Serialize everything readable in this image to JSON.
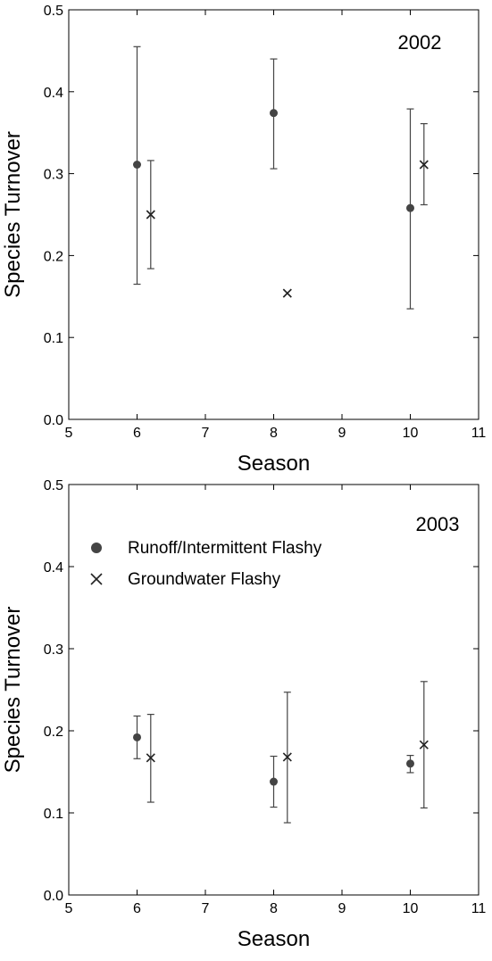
{
  "chart_data": [
    {
      "type": "scatter",
      "annotation": "2002",
      "xlabel": "Season",
      "ylabel": "Species Turnover",
      "xlim": [
        5,
        11
      ],
      "ylim": [
        0,
        0.5
      ],
      "xticks": [
        5,
        6,
        7,
        8,
        9,
        10,
        11
      ],
      "yticks": [
        0.0,
        0.1,
        0.2,
        0.3,
        0.4,
        0.5
      ],
      "ytick_labels": [
        "0.0",
        "0.1",
        "0.2",
        "0.3",
        "0.4",
        "0.5"
      ],
      "grid": false,
      "series": [
        {
          "marker": "circle",
          "points": [
            {
              "x": 6,
              "y": 0.311,
              "low": 0.165,
              "high": 0.455
            },
            {
              "x": 8,
              "y": 0.374,
              "low": 0.306,
              "high": 0.44
            },
            {
              "x": 10,
              "y": 0.258,
              "low": 0.135,
              "high": 0.379
            }
          ]
        },
        {
          "marker": "x",
          "points": [
            {
              "x": 6.2,
              "y": 0.25,
              "low": 0.184,
              "high": 0.316
            },
            {
              "x": 8.2,
              "y": 0.154
            },
            {
              "x": 10.2,
              "y": 0.311,
              "low": 0.262,
              "high": 0.361
            }
          ]
        }
      ]
    },
    {
      "type": "scatter",
      "annotation": "2003",
      "xlabel": "Season",
      "ylabel": "Species Turnover",
      "xlim": [
        5,
        11
      ],
      "ylim": [
        0,
        0.5
      ],
      "xticks": [
        5,
        6,
        7,
        8,
        9,
        10,
        11
      ],
      "yticks": [
        0.0,
        0.1,
        0.2,
        0.3,
        0.4,
        0.5
      ],
      "ytick_labels": [
        "0.0",
        "0.1",
        "0.2",
        "0.3",
        "0.4",
        "0.5"
      ],
      "grid": false,
      "legend": "upper-left",
      "series": [
        {
          "name": "Runoff/Intermittent Flashy",
          "marker": "circle",
          "points": [
            {
              "x": 6,
              "y": 0.192,
              "low": 0.166,
              "high": 0.218
            },
            {
              "x": 8,
              "y": 0.138,
              "low": 0.107,
              "high": 0.169
            },
            {
              "x": 10,
              "y": 0.16,
              "low": 0.149,
              "high": 0.17
            }
          ]
        },
        {
          "name": "Groundwater Flashy",
          "marker": "x",
          "points": [
            {
              "x": 6.2,
              "y": 0.167,
              "low": 0.113,
              "high": 0.22
            },
            {
              "x": 8.2,
              "y": 0.168,
              "low": 0.088,
              "high": 0.247
            },
            {
              "x": 10.2,
              "y": 0.183,
              "low": 0.106,
              "high": 0.26
            }
          ]
        }
      ]
    }
  ]
}
